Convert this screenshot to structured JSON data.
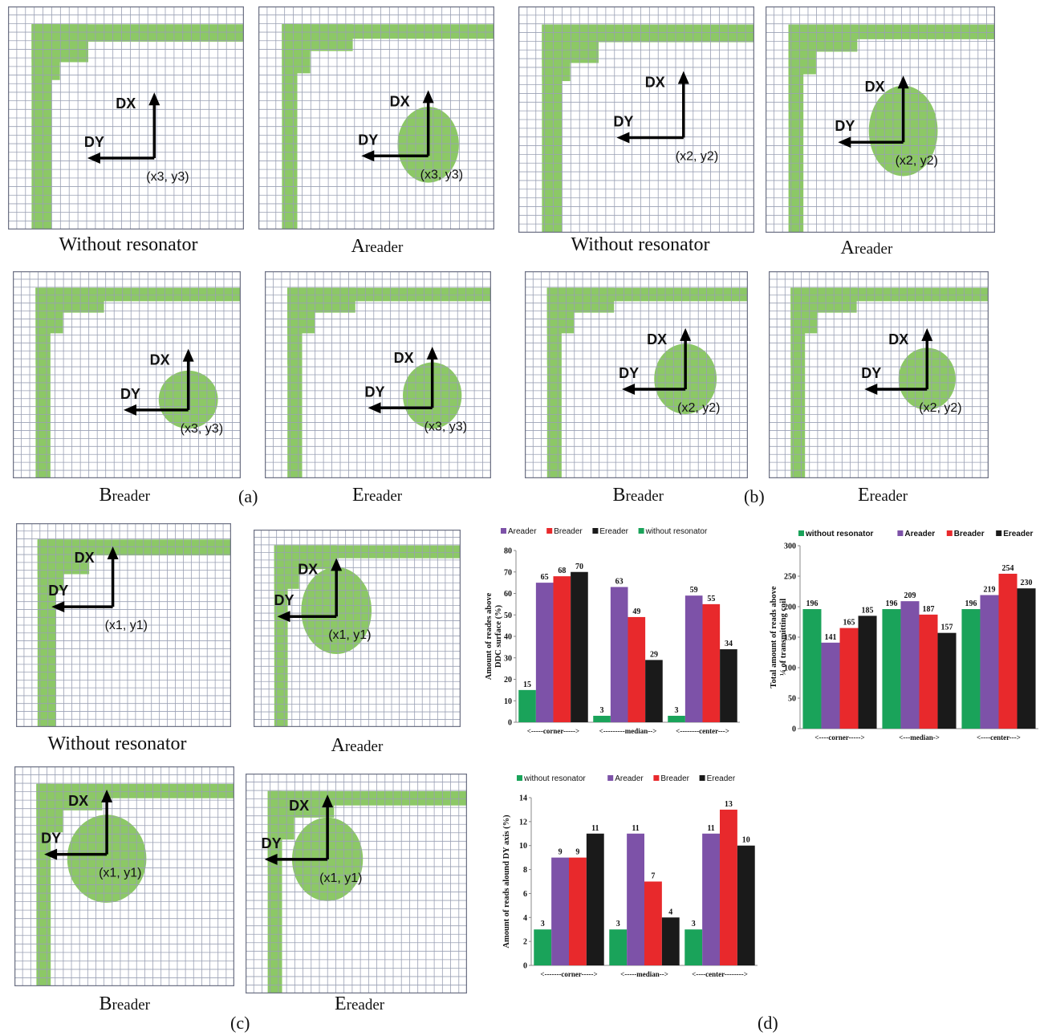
{
  "groups": [
    {
      "label": "(a)",
      "coord": "(x3, y3)",
      "axis_dx": "DX",
      "axis_dy": "DY",
      "panels": [
        {
          "caption_main": "Without resonator",
          "caption_sub": ""
        },
        {
          "caption_main": "A",
          "caption_sub": "reader"
        },
        {
          "caption_main": "B",
          "caption_sub": "reader"
        },
        {
          "caption_main": "E",
          "caption_sub": "reader"
        }
      ]
    },
    {
      "label": "(b)",
      "coord": "(x2, y2)",
      "axis_dx": "DX",
      "axis_dy": "DY",
      "panels": [
        {
          "caption_main": "Without resonator",
          "caption_sub": ""
        },
        {
          "caption_main": "A",
          "caption_sub": "reader"
        },
        {
          "caption_main": "B",
          "caption_sub": "reader"
        },
        {
          "caption_main": "E",
          "caption_sub": "reader"
        }
      ]
    },
    {
      "label": "(c)",
      "coord": "(x1, y1)",
      "axis_dx": "DX",
      "axis_dy": "DY",
      "panels": [
        {
          "caption_main": "Without resonator",
          "caption_sub": ""
        },
        {
          "caption_main": "A",
          "caption_sub": "reader"
        },
        {
          "caption_main": "B",
          "caption_sub": "reader"
        },
        {
          "caption_main": "E",
          "caption_sub": "reader"
        }
      ]
    },
    {
      "label": "(d)"
    }
  ],
  "colors": {
    "green_fill": "#8cc866",
    "grid_line": "#9aa0b4",
    "without_resonator": "#1aa35a",
    "Areader": "#7d52a8",
    "Breader": "#e8292c",
    "Ereader": "#1a1a1a"
  },
  "chart_data": [
    {
      "type": "bar",
      "ylabel": "Amount of reades above DDC surface (%)",
      "xlabel": "",
      "categories": [
        "<-----corner----->",
        "<---------median-->",
        "<--------center--->"
      ],
      "ylim": [
        0,
        80
      ],
      "yticks": [
        0,
        10,
        20,
        30,
        40,
        50,
        60,
        70,
        80
      ],
      "legend": [
        "Areader",
        "Breader",
        "Ereader",
        "without resonator"
      ],
      "legend_position": "top",
      "series": [
        {
          "name": "without resonator",
          "color": "#1aa35a",
          "values": [
            15,
            3,
            3
          ]
        },
        {
          "name": "Areader",
          "color": "#7d52a8",
          "values": [
            65,
            63,
            59
          ]
        },
        {
          "name": "Breader",
          "color": "#e8292c",
          "values": [
            68,
            49,
            55
          ]
        },
        {
          "name": "Ereader",
          "color": "#1a1a1a",
          "values": [
            70,
            29,
            34
          ]
        }
      ]
    },
    {
      "type": "bar",
      "ylabel": "Total amount of reads above ¼ of transmitting coil",
      "xlabel": "",
      "categories": [
        "<----corner----->",
        "<---median->",
        "<----center--->"
      ],
      "ylim": [
        0,
        300
      ],
      "yticks": [
        0,
        50,
        100,
        150,
        200,
        250,
        300
      ],
      "legend": [
        "without resonator",
        "Areader",
        "Breader",
        "Ereader"
      ],
      "legend_position": "top",
      "series": [
        {
          "name": "without resonator",
          "color": "#1aa35a",
          "values": [
            196,
            196,
            196
          ]
        },
        {
          "name": "Areader",
          "color": "#7d52a8",
          "values": [
            141,
            209,
            219
          ]
        },
        {
          "name": "Breader",
          "color": "#e8292c",
          "values": [
            165,
            187,
            254
          ]
        },
        {
          "name": "Ereader",
          "color": "#1a1a1a",
          "values": [
            185,
            157,
            230
          ]
        }
      ]
    },
    {
      "type": "bar",
      "ylabel": "Amount of reads alound DY axis (%)",
      "xlabel": "",
      "categories": [
        "<-------corner----->",
        "<-----median-->",
        "<----center-------->"
      ],
      "ylim": [
        0,
        14
      ],
      "yticks": [
        0,
        2,
        4,
        6,
        8,
        10,
        12,
        14
      ],
      "legend": [
        "without resonator",
        "Areader",
        "Breader",
        "Ereader"
      ],
      "legend_position": "top",
      "series": [
        {
          "name": "without resonator",
          "color": "#1aa35a",
          "values": [
            3,
            3,
            3
          ]
        },
        {
          "name": "Areader",
          "color": "#7d52a8",
          "values": [
            9,
            11,
            11
          ]
        },
        {
          "name": "Breader",
          "color": "#e8292c",
          "values": [
            9,
            7,
            13
          ]
        },
        {
          "name": "Ereader",
          "color": "#1a1a1a",
          "values": [
            11,
            4,
            10
          ]
        }
      ]
    }
  ]
}
